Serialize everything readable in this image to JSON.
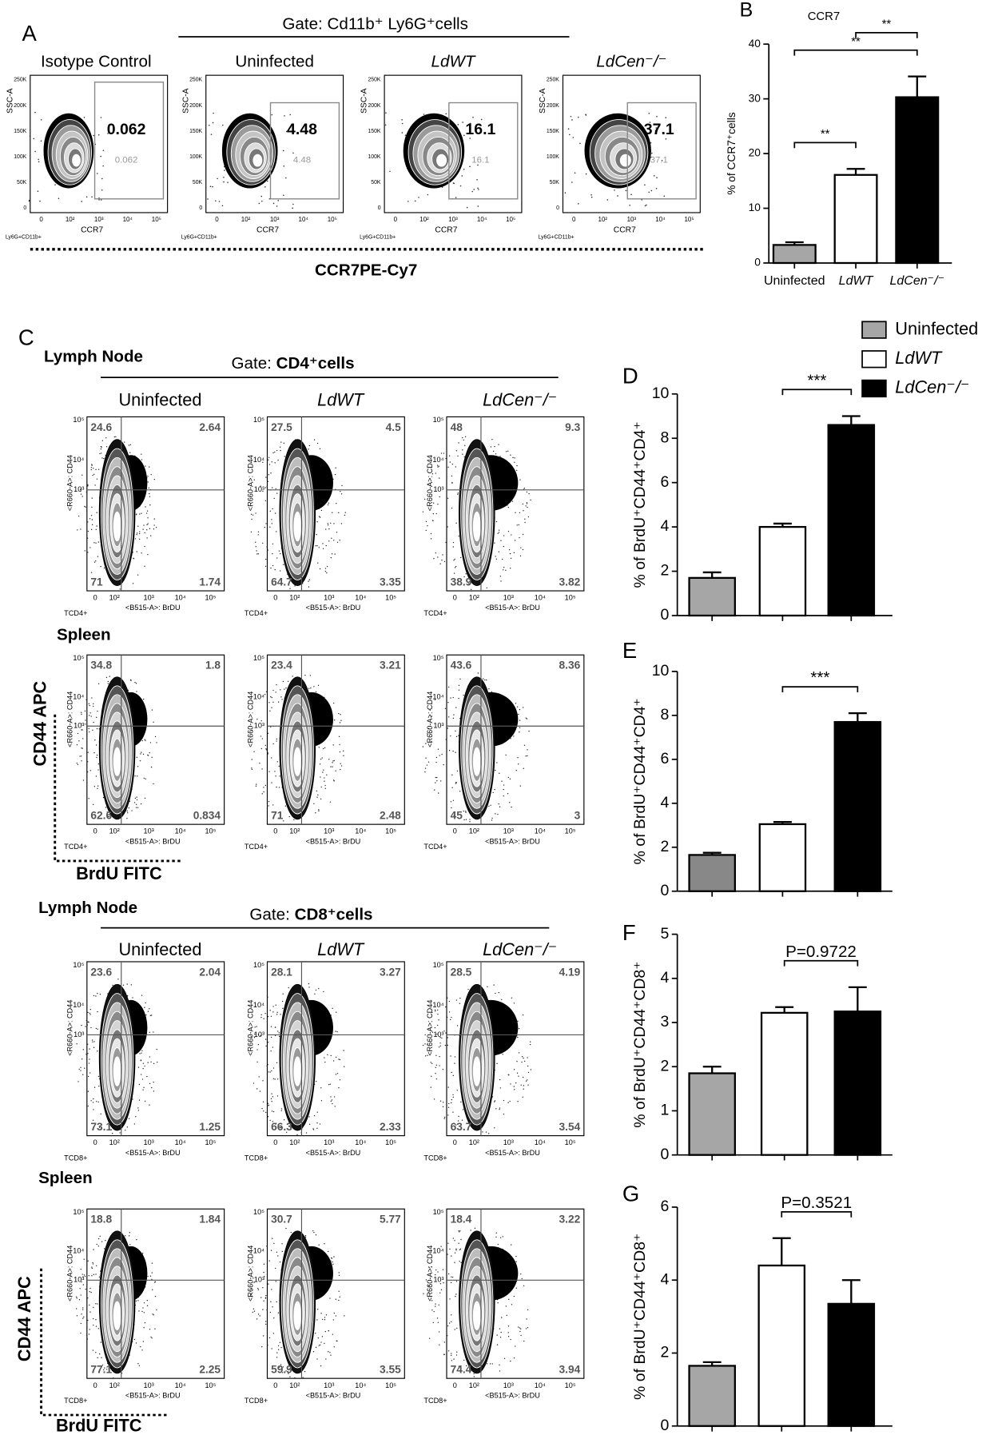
{
  "panel_a": {
    "label": "A",
    "gate": "Gate: Cd11b⁺ Ly6G⁺cells",
    "x_axis": "CCR7PE-Cy7",
    "x_ticks": [
      "0",
      "10²",
      "10³",
      "10⁴",
      "10⁵"
    ],
    "y_ticks": [
      "250K",
      "200K",
      "150K",
      "100K",
      "50K",
      "0"
    ],
    "plots": [
      {
        "title": "Isotype Control",
        "gate_value": "0.062",
        "gate_value_small": "0.062",
        "x_label": "CCR7",
        "y_label": "SSC-A",
        "corner_label": "Ly6G+CD11b+"
      },
      {
        "title": "Uninfected",
        "gate_value": "4.48",
        "gate_value_small": "4.48",
        "x_label": "CCR7",
        "y_label": "SSC-A",
        "corner_label": "Ly6G+CD11b+"
      },
      {
        "title": "LdWT",
        "gate_value": "16.1",
        "gate_value_small": "16.1",
        "x_label": "CCR7",
        "y_label": "SSC-A",
        "corner_label": "Ly6G+CD11b+"
      },
      {
        "title": "LdCen⁻/⁻",
        "gate_value": "37.1",
        "gate_value_small": "37.1",
        "x_label": "CCR7",
        "y_label": "SSC-A",
        "corner_label": "Ly6G+CD11b+"
      }
    ]
  },
  "panel_c": {
    "label": "C",
    "x_axis": "BrdU FITC",
    "y_axis": "CD44 APC",
    "columns": [
      "Uninfected",
      "LdWT",
      "LdCen⁻/⁻"
    ],
    "x_label": "<B515-A>: BrDU",
    "y_label": "<R660-A>: CD44",
    "x_ticks": [
      "0",
      "10²",
      "10³",
      "10⁴",
      "10⁵"
    ],
    "y_ticks": [
      "10⁵",
      "10⁴",
      "10³"
    ],
    "blocks": [
      {
        "tissue": "Lymph Node",
        "gate_prefix": "Gate:",
        "gate": "CD4⁺cells",
        "corner_label": "TCD4+",
        "plots": [
          [
            "24.6",
            "2.64",
            "71",
            "1.74"
          ],
          [
            "27.5",
            "4.5",
            "64.7",
            "3.35"
          ],
          [
            "48",
            "9.3",
            "38.9",
            "3.82"
          ]
        ]
      },
      {
        "tissue": "Spleen",
        "corner_label": "TCD4+",
        "plots": [
          [
            "34.8",
            "1.8",
            "62.6",
            "0.834"
          ],
          [
            "23.4",
            "3.21",
            "71",
            "2.48"
          ],
          [
            "43.6",
            "8.36",
            "45",
            "3"
          ]
        ]
      },
      {
        "tissue": "Lymph Node",
        "gate_prefix": "Gate:",
        "gate": "CD8⁺cells",
        "corner_label": "TCD8+",
        "plots": [
          [
            "23.6",
            "2.04",
            "73.1",
            "1.25"
          ],
          [
            "28.1",
            "3.27",
            "66.3",
            "2.33"
          ],
          [
            "28.5",
            "4.19",
            "63.7",
            "3.54"
          ]
        ]
      },
      {
        "tissue": "Spleen",
        "corner_label": "TCD8+",
        "plots": [
          [
            "18.8",
            "1.84",
            "77.1",
            "2.25"
          ],
          [
            "30.7",
            "5.77",
            "59.9",
            "3.55"
          ],
          [
            "18.4",
            "3.22",
            "74.4",
            "3.94"
          ]
        ]
      }
    ]
  },
  "legend": [
    {
      "name": "Uninfected",
      "color": "#a6a6a6"
    },
    {
      "name": "LdWT",
      "color": "#ffffff"
    },
    {
      "name": "LdCen⁻/⁻",
      "color": "#000000"
    }
  ],
  "chart_data": [
    {
      "type": "bar",
      "panel": "B",
      "title": "CCR7",
      "y_label": "% of CCR7⁺cells",
      "categories": [
        "Uninfected",
        "LdWT",
        "LdCen⁻/⁻"
      ],
      "values": [
        3.3,
        16.1,
        30.3
      ],
      "errors": [
        0.5,
        1.1,
        3.8
      ],
      "colors": [
        "#a6a6a6",
        "#ffffff",
        "#000000"
      ],
      "ylim": [
        0,
        40
      ],
      "yticks": [
        0,
        10,
        20,
        30,
        40
      ],
      "annotations": [
        {
          "text": "**",
          "pair": [
            0,
            1
          ]
        },
        {
          "text": "**",
          "pair": [
            0,
            2
          ]
        },
        {
          "text": "**",
          "pair": [
            1,
            2
          ]
        }
      ]
    },
    {
      "type": "bar",
      "panel": "D",
      "y_label": "% of BrdU⁺CD44⁺CD4⁺",
      "categories": [
        null,
        null,
        null
      ],
      "values": [
        1.7,
        4.0,
        8.6
      ],
      "errors": [
        0.25,
        0.15,
        0.4
      ],
      "colors": [
        "#a6a6a6",
        "#ffffff",
        "#000000"
      ],
      "ylim": [
        0,
        10
      ],
      "yticks": [
        0,
        2,
        4,
        6,
        8,
        10
      ],
      "annotations": [
        {
          "text": "***",
          "pair": [
            1,
            2
          ]
        }
      ]
    },
    {
      "type": "bar",
      "panel": "E",
      "y_label": "% of BrdU⁺CD44⁺CD4⁺",
      "categories": [
        null,
        null,
        null
      ],
      "values": [
        1.65,
        3.05,
        7.7
      ],
      "errors": [
        0.1,
        0.1,
        0.4
      ],
      "colors": [
        "#888888",
        "#ffffff",
        "#000000"
      ],
      "ylim": [
        0,
        10
      ],
      "yticks": [
        0,
        2,
        4,
        6,
        8,
        10
      ],
      "annotations": [
        {
          "text": "***",
          "pair": [
            1,
            2
          ]
        }
      ]
    },
    {
      "type": "bar",
      "panel": "F",
      "y_label": "% of BrdU⁺CD44⁺CD8⁺",
      "categories": [
        null,
        null,
        null
      ],
      "values": [
        1.85,
        3.22,
        3.25
      ],
      "errors": [
        0.15,
        0.13,
        0.55
      ],
      "colors": [
        "#a6a6a6",
        "#ffffff",
        "#000000"
      ],
      "ylim": [
        0,
        5
      ],
      "yticks": [
        0,
        1,
        2,
        3,
        4,
        5
      ],
      "annotations": [
        {
          "text": "P=0.9722",
          "pair": [
            1,
            2
          ]
        }
      ]
    },
    {
      "type": "bar",
      "panel": "G",
      "y_label": "% of BrdU⁺CD44⁺CD8⁺",
      "categories": [
        null,
        null,
        null
      ],
      "values": [
        1.65,
        4.4,
        3.35
      ],
      "errors": [
        0.1,
        0.75,
        0.65
      ],
      "colors": [
        "#a6a6a6",
        "#ffffff",
        "#000000"
      ],
      "ylim": [
        0,
        6
      ],
      "yticks": [
        0,
        2,
        4,
        6
      ],
      "annotations": [
        {
          "text": "P=0.3521",
          "pair": [
            1,
            2
          ]
        }
      ]
    }
  ]
}
